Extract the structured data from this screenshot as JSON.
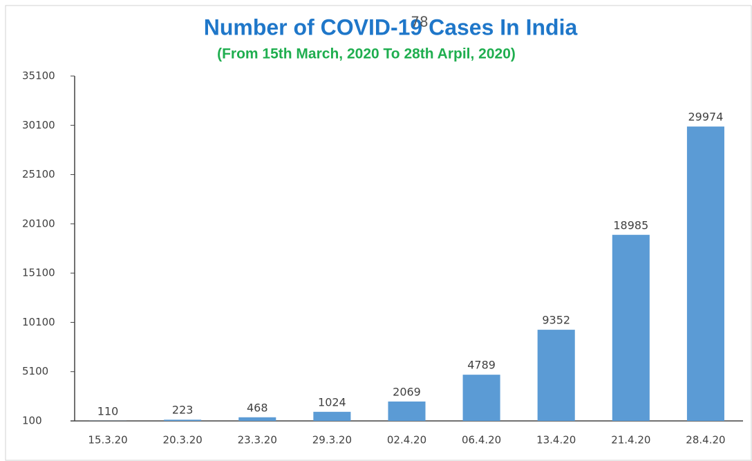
{
  "chart_data": {
    "type": "bar",
    "title": "Number of COVID-19 Cases In India",
    "subtitle": "(From 15th  March, 2020 To 28th Arpil, 2020)",
    "annotation": "78",
    "categories": [
      "15.3.20",
      "20.3.20",
      "23.3.20",
      "29.3.20",
      "02.4.20",
      "06.4.20",
      "13.4.20",
      "21.4.20",
      "28.4.20"
    ],
    "values": [
      110,
      223,
      468,
      1024,
      2069,
      4789,
      9352,
      18985,
      29974
    ],
    "color": "#5b9bd5",
    "ylim": [
      100,
      35100
    ],
    "yticks": [
      100,
      5100,
      10100,
      15100,
      20100,
      25100,
      30100,
      35100
    ],
    "grid": false
  }
}
